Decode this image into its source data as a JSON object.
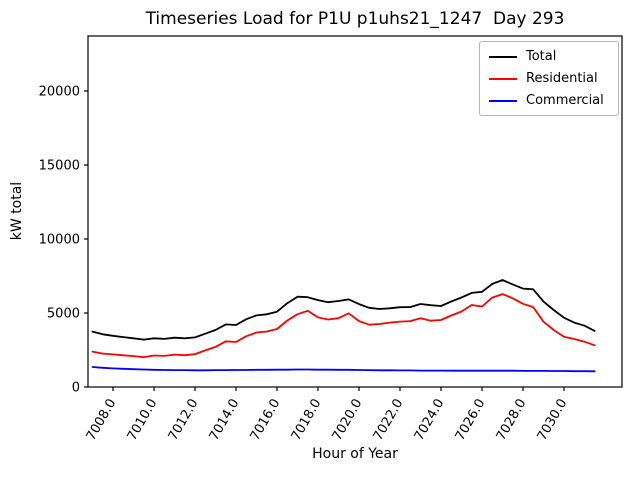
{
  "chart_data": {
    "type": "line",
    "title": "Timeseries Load for P1U p1uhs21_1247  Day 293",
    "xlabel": "Hour of Year",
    "ylabel": "kW total",
    "xlim": [
      7006.78,
      7032.83
    ],
    "ylim": [
      0,
      23716
    ],
    "grid": false,
    "legend_position": "upper right",
    "xticks": [
      7008,
      7010,
      7012,
      7014,
      7016,
      7018,
      7020,
      7022,
      7024,
      7026,
      7028,
      7030
    ],
    "xtick_labels": [
      "7008.0",
      "7010.0",
      "7012.0",
      "7014.0",
      "7016.0",
      "7018.0",
      "7020.0",
      "7022.0",
      "7024.0",
      "7026.0",
      "7028.0",
      "7030.0"
    ],
    "xtick_rotation_deg": 60,
    "yticks": [
      0,
      5000,
      10000,
      15000,
      20000
    ],
    "ytick_labels": [
      "0",
      "5000",
      "10000",
      "15000",
      "20000"
    ],
    "x": [
      7007.0,
      7007.5,
      7008.0,
      7008.5,
      7009.0,
      7009.5,
      7010.0,
      7010.5,
      7011.0,
      7011.5,
      7012.0,
      7012.5,
      7013.0,
      7013.5,
      7014.0,
      7014.5,
      7015.0,
      7015.5,
      7016.0,
      7016.5,
      7017.0,
      7017.5,
      7018.0,
      7018.5,
      7019.0,
      7019.5,
      7020.0,
      7020.5,
      7021.0,
      7021.5,
      7022.0,
      7022.5,
      7023.0,
      7023.5,
      7024.0,
      7024.5,
      7025.0,
      7025.5,
      7026.0,
      7026.5,
      7027.0,
      7027.5,
      7028.0,
      7028.5,
      7029.0,
      7029.5,
      7030.0,
      7030.5,
      7031.0,
      7031.5
    ],
    "series": [
      {
        "name": "Total",
        "color": "#000000",
        "values": [
          3740,
          3560,
          3460,
          3370,
          3290,
          3200,
          3290,
          3250,
          3330,
          3290,
          3350,
          3600,
          3850,
          4230,
          4190,
          4580,
          4840,
          4910,
          5090,
          5660,
          6100,
          6070,
          5870,
          5730,
          5810,
          5920,
          5600,
          5350,
          5270,
          5320,
          5390,
          5400,
          5610,
          5530,
          5470,
          5780,
          6050,
          6360,
          6430,
          6960,
          7230,
          6930,
          6650,
          6600,
          5770,
          5200,
          4680,
          4350,
          4140,
          3790
        ]
      },
      {
        "name": "Residential",
        "color": "#ff0000",
        "values": [
          2390,
          2260,
          2200,
          2140,
          2090,
          2020,
          2130,
          2100,
          2190,
          2150,
          2220,
          2470,
          2710,
          3090,
          3040,
          3430,
          3680,
          3750,
          3920,
          4490,
          4920,
          5150,
          4700,
          4560,
          4650,
          4980,
          4450,
          4210,
          4260,
          4350,
          4420,
          4450,
          4650,
          4480,
          4530,
          4830,
          5100,
          5540,
          5440,
          6040,
          6280,
          5990,
          5620,
          5400,
          4410,
          3850,
          3400,
          3240,
          3060,
          2820
        ]
      },
      {
        "name": "Commercial",
        "color": "#0000ff",
        "values": [
          1350,
          1300,
          1260,
          1230,
          1200,
          1180,
          1160,
          1150,
          1140,
          1140,
          1130,
          1130,
          1140,
          1140,
          1150,
          1150,
          1160,
          1160,
          1170,
          1170,
          1180,
          1180,
          1170,
          1170,
          1160,
          1160,
          1150,
          1140,
          1130,
          1130,
          1120,
          1120,
          1110,
          1110,
          1110,
          1100,
          1100,
          1100,
          1100,
          1100,
          1100,
          1100,
          1090,
          1090,
          1090,
          1080,
          1080,
          1070,
          1070,
          1060
        ]
      }
    ]
  }
}
